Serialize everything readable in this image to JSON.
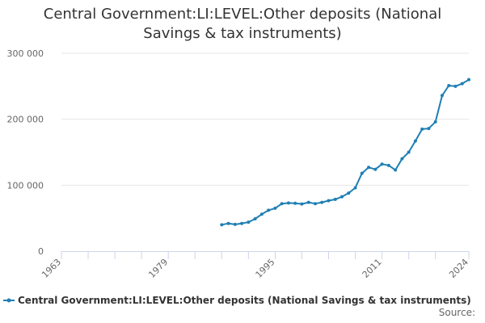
{
  "chart_data": {
    "type": "line",
    "title_lines": [
      "Central Government:LI:LEVEL:Other deposits (National",
      "Savings & tax instruments)"
    ],
    "xlim": [
      1963,
      2024
    ],
    "ylim": [
      0,
      300000
    ],
    "x_ticks": [
      1963,
      1967,
      1971,
      1975,
      1979,
      1983,
      1987,
      1991,
      1995,
      1999,
      2003,
      2007,
      2011,
      2015,
      2019,
      2024
    ],
    "x_tick_labels": [
      {
        "x": 1963,
        "label": "1963"
      },
      {
        "x": 1979,
        "label": "1979"
      },
      {
        "x": 1995,
        "label": "1995"
      },
      {
        "x": 2011,
        "label": "2011"
      },
      {
        "x": 2024,
        "label": "2024"
      }
    ],
    "y_ticks": [
      {
        "value": 0,
        "label": "0"
      },
      {
        "value": 100000,
        "label": "100 000"
      },
      {
        "value": 200000,
        "label": "200 000"
      },
      {
        "value": 300000,
        "label": "300 000"
      }
    ],
    "grid": true,
    "series": [
      {
        "name": "Central Government:LI:LEVEL:Other deposits (National Savings & tax instruments)",
        "color": "#1f7fb4",
        "x": [
          1987,
          1988,
          1989,
          1990,
          1991,
          1992,
          1993,
          1994,
          1995,
          1996,
          1997,
          1998,
          1999,
          2000,
          2001,
          2002,
          2003,
          2004,
          2005,
          2006,
          2007,
          2008,
          2009,
          2010,
          2011,
          2012,
          2013,
          2014,
          2015,
          2016,
          2017,
          2018,
          2019,
          2020,
          2021,
          2022,
          2023,
          2024
        ],
        "values": [
          40000,
          42000,
          40500,
          42000,
          44000,
          49000,
          56000,
          62000,
          65000,
          72000,
          73000,
          72500,
          71500,
          74000,
          72000,
          74000,
          76500,
          78500,
          82500,
          88000,
          96000,
          118000,
          127000,
          124000,
          132000,
          130000,
          123000,
          140000,
          150000,
          167000,
          185000,
          186000,
          196000,
          236000,
          251000,
          250000,
          254000,
          260000
        ]
      }
    ],
    "legend_position": "bottom",
    "source_text": "Source:"
  }
}
